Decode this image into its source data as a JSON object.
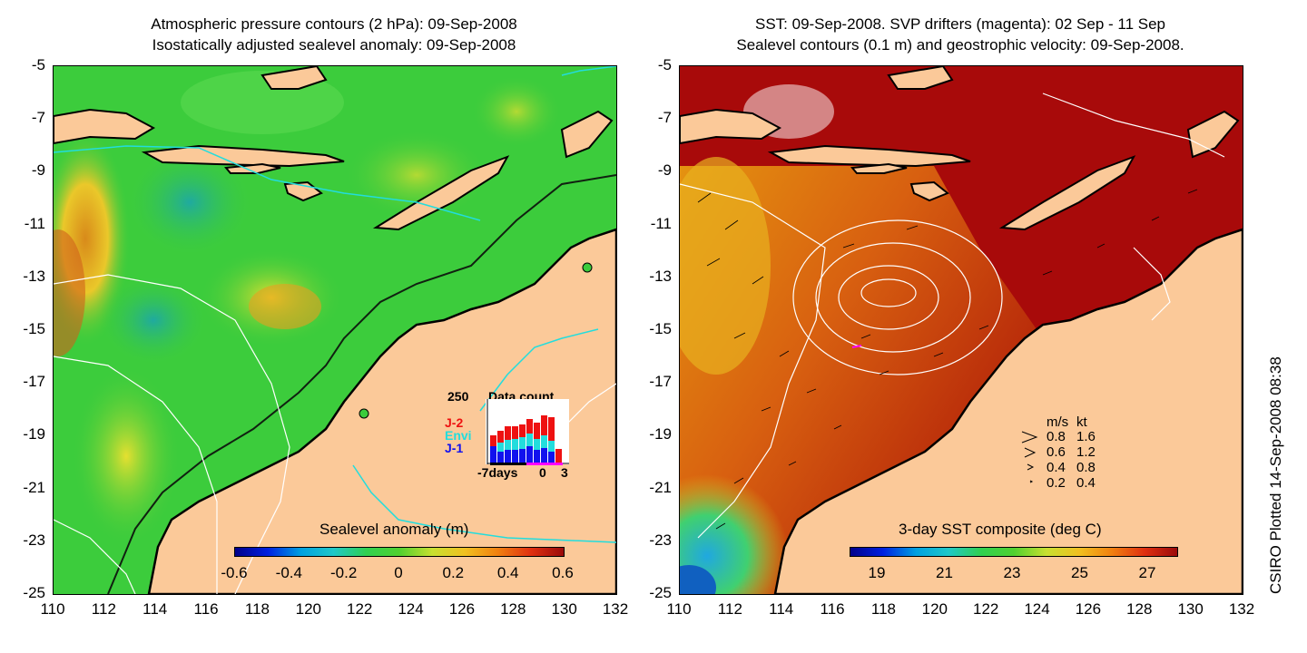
{
  "left_panel": {
    "title_line1": "Atmospheric pressure contours (2 hPa): 09-Sep-2008",
    "title_line2": "Isostatically adjusted sealevel anomaly: 09-Sep-2008",
    "colorbar_label": "Sealevel anomaly (m)",
    "colorbar_ticks": [
      "-0.6",
      "-0.4",
      "-0.2",
      "0",
      "0.2",
      "0.4",
      "0.6"
    ],
    "inset": {
      "title": "Data count",
      "ymax_label": "250",
      "legend": [
        {
          "label": "J-2",
          "color": "#ee1111"
        },
        {
          "label": "Envi",
          "color": "#22dddd"
        },
        {
          "label": "J-1",
          "color": "#1111ee"
        }
      ],
      "x_labels": [
        "-7days",
        "0",
        "3"
      ]
    }
  },
  "right_panel": {
    "title_line1": "SST: 09-Sep-2008. SVP drifters (magenta): 02 Sep - 11 Sep",
    "title_line2": "Sealevel contours (0.1 m) and geostrophic velocity: 09-Sep-2008.",
    "colorbar_label": "3-day SST composite (deg C)",
    "colorbar_ticks": [
      "19",
      "21",
      "23",
      "25",
      "27"
    ],
    "velocity_legend": {
      "header_ms": "m/s",
      "header_kt": "kt",
      "rows": [
        {
          "ms": "0.8",
          "kt": "1.6"
        },
        {
          "ms": "0.6",
          "kt": "1.2"
        },
        {
          "ms": "0.4",
          "kt": "0.8"
        },
        {
          "ms": "0.2",
          "kt": "0.4"
        }
      ]
    }
  },
  "axes": {
    "lat_labels": [
      "-5",
      "-7",
      "-9",
      "-11",
      "-13",
      "-15",
      "-17",
      "-19",
      "-21",
      "-23",
      "-25"
    ],
    "lon_labels": [
      "110",
      "112",
      "114",
      "116",
      "118",
      "120",
      "122",
      "124",
      "126",
      "128",
      "130",
      "132"
    ]
  },
  "credit": "CSIRO Plotted 14-Sep-2008 08:38",
  "colors": {
    "land": "#fbc999",
    "sea_green": "#3ccc3c",
    "sst_red": "#a80a0a",
    "sst_orange": "#e6800f",
    "drifter": "#ff00ff",
    "contour_white": "#ffffff",
    "contour_cyan": "#22dddd"
  }
}
